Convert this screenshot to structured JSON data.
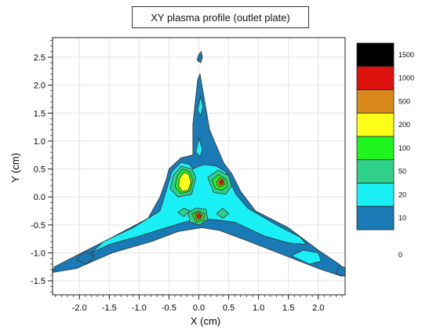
{
  "chart_data": {
    "type": "contour",
    "title": "XY plasma profile (outlet plate)",
    "xlabel": "X (cm)",
    "ylabel": "Y (cm)",
    "xlim": [
      -2.45,
      2.45
    ],
    "ylim": [
      -1.75,
      2.85
    ],
    "x_ticks": [
      -2.0,
      -1.5,
      -1.0,
      -0.5,
      0.0,
      0.5,
      1.0,
      1.5,
      2.0
    ],
    "x_tick_labels": [
      "-2.0",
      "-1.5",
      "-1.0",
      "-0.5",
      "0.0",
      "0.5",
      "1.0",
      "1.5",
      "2.0"
    ],
    "y_ticks": [
      -1.5,
      -1.0,
      -0.5,
      0.0,
      0.5,
      1.0,
      1.5,
      2.0,
      2.5
    ],
    "y_tick_labels": [
      "-1.5",
      "-1.0",
      "-0.5",
      "0.0",
      "0.5",
      "1.0",
      "1.5",
      "2.0",
      "2.5"
    ],
    "grid": true,
    "colorbar": {
      "levels": [
        {
          "label": "0",
          "color": "#ffffff"
        },
        {
          "label": "10",
          "color": "#1a7ab5"
        },
        {
          "label": "20",
          "color": "#19f0f5"
        },
        {
          "label": "50",
          "color": "#2fd08a"
        },
        {
          "label": "100",
          "color": "#1ef51e"
        },
        {
          "label": "200",
          "color": "#ffff1a"
        },
        {
          "label": "500",
          "color": "#d98a1a"
        },
        {
          "label": "1000",
          "color": "#e0120e"
        },
        {
          "label": "1500",
          "color": "#000000"
        }
      ]
    },
    "regions": [
      {
        "level": "10",
        "polygons": [
          [
            [
              -0.5,
              0.5
            ],
            [
              -0.3,
              0.7
            ],
            [
              -0.1,
              0.75
            ],
            [
              -0.1,
              1.3
            ],
            [
              -0.02,
              2.1
            ],
            [
              0.02,
              2.2
            ],
            [
              0.1,
              1.7
            ],
            [
              0.18,
              1.2
            ],
            [
              0.3,
              0.9
            ],
            [
              0.42,
              0.6
            ],
            [
              0.55,
              0.42
            ],
            [
              0.7,
              0.1
            ],
            [
              0.95,
              -0.25
            ],
            [
              1.5,
              -0.55
            ],
            [
              2.0,
              -0.95
            ],
            [
              2.35,
              -1.2
            ],
            [
              2.45,
              -1.32
            ],
            [
              2.4,
              -1.42
            ],
            [
              2.05,
              -1.3
            ],
            [
              1.45,
              -1.05
            ],
            [
              0.85,
              -0.8
            ],
            [
              0.35,
              -0.6
            ],
            [
              0.05,
              -0.55
            ],
            [
              -0.35,
              -0.62
            ],
            [
              -0.8,
              -0.8
            ],
            [
              -1.45,
              -1.0
            ],
            [
              -2.05,
              -1.28
            ],
            [
              -2.45,
              -1.35
            ],
            [
              -2.42,
              -1.25
            ],
            [
              -2.0,
              -1.02
            ],
            [
              -1.45,
              -0.72
            ],
            [
              -0.85,
              -0.38
            ],
            [
              -0.65,
              0.0
            ],
            [
              -0.55,
              0.3
            ]
          ],
          [
            [
              -0.03,
              2.45
            ],
            [
              0.0,
              2.55
            ],
            [
              0.04,
              2.6
            ],
            [
              0.06,
              2.5
            ],
            [
              0.03,
              2.4
            ]
          ],
          [
            [
              -2.05,
              -1.12
            ],
            [
              -1.92,
              -0.98
            ],
            [
              -1.75,
              -1.05
            ],
            [
              -1.88,
              -1.2
            ]
          ],
          [
            [
              2.35,
              -1.22
            ],
            [
              2.48,
              -1.28
            ],
            [
              2.45,
              -1.42
            ],
            [
              2.3,
              -1.38
            ]
          ]
        ]
      },
      {
        "level": "20",
        "polygons": [
          [
            [
              -0.45,
              0.45
            ],
            [
              -0.3,
              0.62
            ],
            [
              -0.15,
              0.58
            ],
            [
              -0.1,
              0.5
            ],
            [
              0.0,
              0.55
            ],
            [
              0.1,
              0.58
            ],
            [
              0.3,
              0.55
            ],
            [
              0.45,
              0.45
            ],
            [
              0.62,
              0.05
            ],
            [
              0.82,
              -0.2
            ],
            [
              1.3,
              -0.5
            ],
            [
              1.7,
              -0.72
            ],
            [
              1.8,
              -0.85
            ],
            [
              1.5,
              -0.82
            ],
            [
              1.1,
              -0.7
            ],
            [
              0.6,
              -0.45
            ],
            [
              0.2,
              -0.4
            ],
            [
              -0.15,
              -0.42
            ],
            [
              -0.55,
              -0.55
            ],
            [
              -1.0,
              -0.7
            ],
            [
              -1.5,
              -0.85
            ],
            [
              -1.8,
              -1.0
            ],
            [
              -1.6,
              -0.8
            ],
            [
              -1.1,
              -0.55
            ],
            [
              -0.65,
              -0.25
            ],
            [
              -0.55,
              0.1
            ]
          ],
          [
            [
              -0.02,
              1.55
            ],
            [
              0.03,
              1.8
            ],
            [
              0.07,
              1.62
            ],
            [
              0.03,
              1.45
            ]
          ],
          [
            [
              -0.05,
              0.8
            ],
            [
              0.0,
              1.05
            ],
            [
              0.06,
              0.85
            ],
            [
              0.02,
              0.72
            ]
          ],
          [
            [
              1.55,
              -1.05
            ],
            [
              1.75,
              -0.95
            ],
            [
              2.0,
              -1.0
            ],
            [
              2.05,
              -1.15
            ],
            [
              1.85,
              -1.2
            ]
          ]
        ]
      },
      {
        "level": "50",
        "polygons": [
          [
            [
              -0.42,
              0.4
            ],
            [
              -0.3,
              0.55
            ],
            [
              -0.12,
              0.5
            ],
            [
              -0.05,
              0.35
            ],
            [
              -0.12,
              0.05
            ],
            [
              -0.35,
              0.0
            ],
            [
              -0.48,
              0.15
            ]
          ],
          [
            [
              0.15,
              0.35
            ],
            [
              0.32,
              0.48
            ],
            [
              0.5,
              0.38
            ],
            [
              0.55,
              0.2
            ],
            [
              0.45,
              0.05
            ],
            [
              0.25,
              0.08
            ]
          ],
          [
            [
              -0.18,
              -0.28
            ],
            [
              -0.05,
              -0.2
            ],
            [
              0.12,
              -0.22
            ],
            [
              0.15,
              -0.4
            ],
            [
              0.02,
              -0.5
            ],
            [
              -0.15,
              -0.45
            ]
          ],
          [
            [
              -0.35,
              -0.28
            ],
            [
              -0.25,
              -0.2
            ],
            [
              -0.15,
              -0.25
            ],
            [
              -0.25,
              -0.35
            ]
          ],
          [
            [
              0.3,
              -0.3
            ],
            [
              0.4,
              -0.2
            ],
            [
              0.5,
              -0.3
            ],
            [
              0.4,
              -0.38
            ]
          ]
        ]
      },
      {
        "level": "100",
        "polygons": [
          [
            [
              -0.36,
              0.38
            ],
            [
              -0.27,
              0.5
            ],
            [
              -0.15,
              0.45
            ],
            [
              -0.1,
              0.3
            ],
            [
              -0.15,
              0.1
            ],
            [
              -0.3,
              0.06
            ],
            [
              -0.4,
              0.18
            ]
          ],
          [
            [
              0.22,
              0.3
            ],
            [
              0.33,
              0.4
            ],
            [
              0.45,
              0.32
            ],
            [
              0.48,
              0.2
            ],
            [
              0.4,
              0.12
            ],
            [
              0.28,
              0.15
            ]
          ],
          [
            [
              -0.12,
              -0.3
            ],
            [
              0.0,
              -0.25
            ],
            [
              0.1,
              -0.3
            ],
            [
              0.08,
              -0.42
            ],
            [
              -0.05,
              -0.45
            ]
          ]
        ]
      },
      {
        "level": "200",
        "polygons": [
          [
            [
              -0.32,
              0.34
            ],
            [
              -0.25,
              0.44
            ],
            [
              -0.17,
              0.4
            ],
            [
              -0.13,
              0.26
            ],
            [
              -0.18,
              0.12
            ],
            [
              -0.28,
              0.1
            ],
            [
              -0.34,
              0.2
            ]
          ]
        ]
      },
      {
        "level": "500",
        "polygons": [
          [
            [
              0.3,
              0.27
            ],
            [
              0.35,
              0.35
            ],
            [
              0.42,
              0.3
            ],
            [
              0.43,
              0.22
            ],
            [
              0.36,
              0.18
            ],
            [
              0.31,
              0.21
            ]
          ],
          [
            [
              -0.07,
              -0.3
            ],
            [
              0.0,
              -0.27
            ],
            [
              0.06,
              -0.32
            ],
            [
              0.04,
              -0.4
            ],
            [
              -0.04,
              -0.41
            ]
          ]
        ]
      },
      {
        "level": "1000",
        "polygons": [
          [
            [
              0.34,
              0.27
            ],
            [
              0.37,
              0.31
            ],
            [
              0.41,
              0.28
            ],
            [
              0.4,
              0.23
            ],
            [
              0.36,
              0.22
            ]
          ],
          [
            [
              -0.04,
              -0.32
            ],
            [
              0.0,
              -0.3
            ],
            [
              0.04,
              -0.33
            ],
            [
              0.02,
              -0.38
            ],
            [
              -0.02,
              -0.38
            ]
          ]
        ]
      }
    ]
  }
}
